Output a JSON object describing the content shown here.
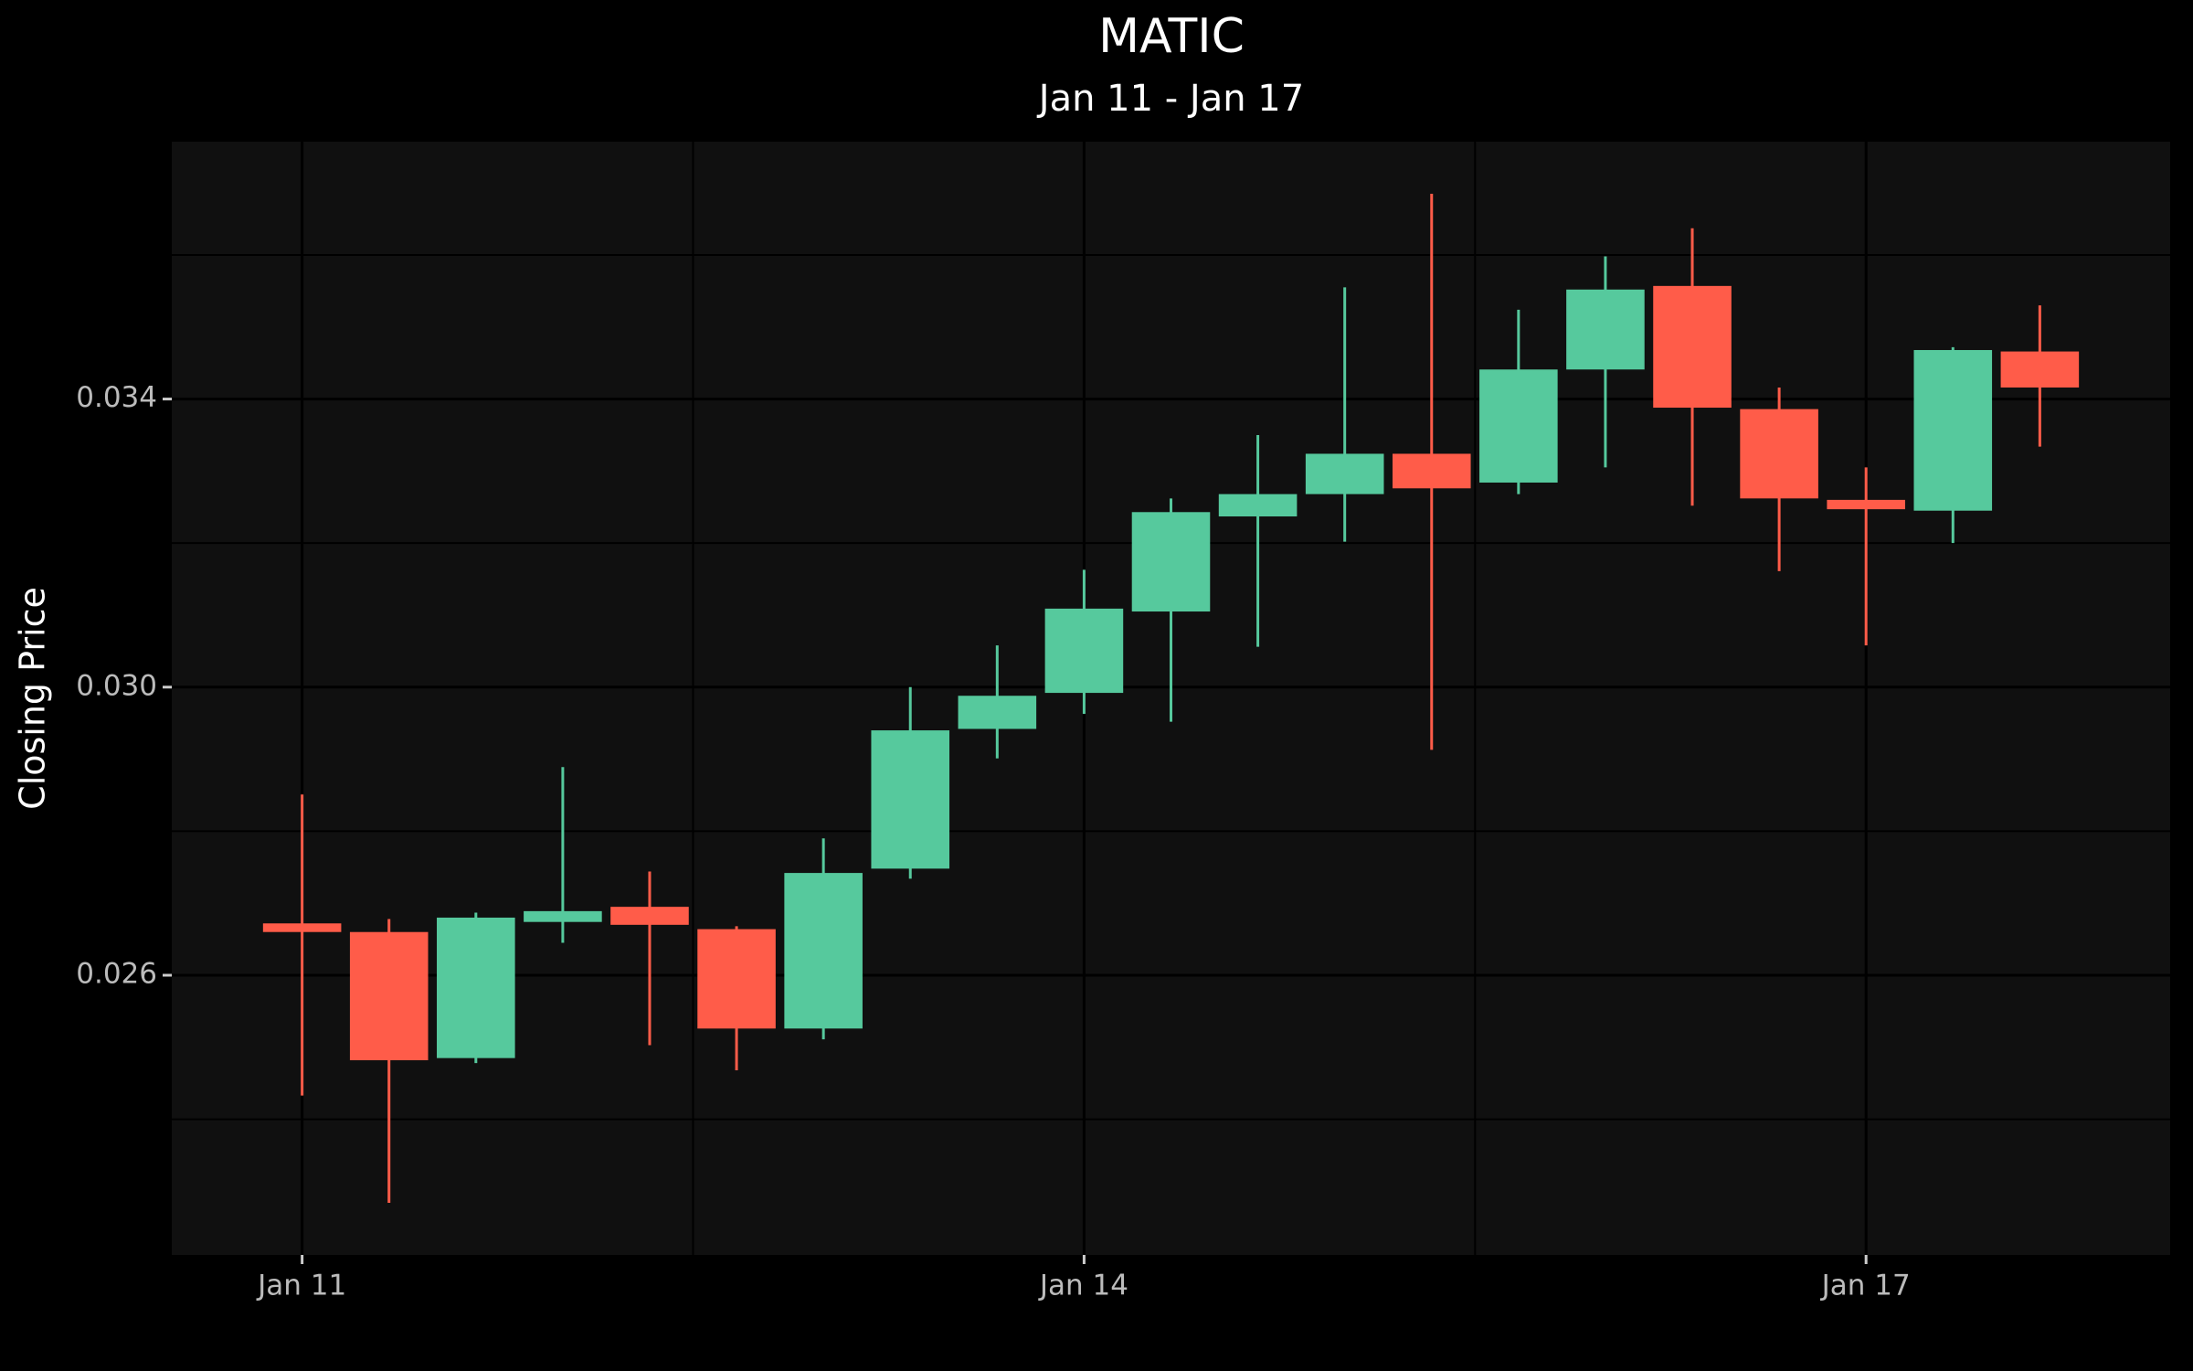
{
  "chart_data": {
    "type": "candlestick",
    "title": "MATIC",
    "subtitle": "Jan 11 - Jan 17",
    "y_label": "Closing Price",
    "categories": [
      "Jan 11",
      null,
      null,
      null,
      null,
      null,
      null,
      null,
      null,
      "Jan 14",
      null,
      null,
      null,
      null,
      null,
      null,
      null,
      null,
      "Jan 17",
      null,
      null
    ],
    "open": [
      0.02672,
      0.0266,
      0.02485,
      0.02674,
      0.02695,
      0.02664,
      0.02526,
      0.02748,
      0.02942,
      0.02992,
      0.03105,
      0.03237,
      0.03268,
      0.03324,
      0.03284,
      0.03441,
      0.03557,
      0.03386,
      0.0326,
      0.03245,
      0.03466
    ],
    "high": [
      0.02851,
      0.02678,
      0.02687,
      0.02889,
      0.02744,
      0.02668,
      0.0279,
      0.03,
      0.03058,
      0.03163,
      0.03262,
      0.0335,
      0.03555,
      0.03685,
      0.03524,
      0.03598,
      0.03637,
      0.03416,
      0.03305,
      0.03472,
      0.0353
    ],
    "low": [
      0.02433,
      0.02284,
      0.02478,
      0.02645,
      0.02503,
      0.02468,
      0.02511,
      0.02734,
      0.02901,
      0.02963,
      0.02952,
      0.03056,
      0.03202,
      0.02913,
      0.03268,
      0.03305,
      0.03252,
      0.03161,
      0.03058,
      0.032,
      0.03334
    ],
    "close": [
      0.0266,
      0.02482,
      0.0268,
      0.02689,
      0.0267,
      0.02526,
      0.02742,
      0.0294,
      0.02988,
      0.03109,
      0.03243,
      0.03268,
      0.03324,
      0.03276,
      0.03441,
      0.03552,
      0.03388,
      0.03262,
      0.03247,
      0.03468,
      0.03416
    ],
    "increasing_color": "#56c99d",
    "decreasing_color": "#ff5c49",
    "ylim": [
      0.022117,
      0.037573
    ],
    "yticks": [
      {
        "value": 0.026,
        "label": "0.026"
      },
      {
        "value": 0.03,
        "label": "0.030"
      },
      {
        "value": 0.034,
        "label": "0.034"
      }
    ],
    "yminorticks": [
      0.024,
      0.028,
      0.032,
      0.036
    ],
    "grid": true
  }
}
